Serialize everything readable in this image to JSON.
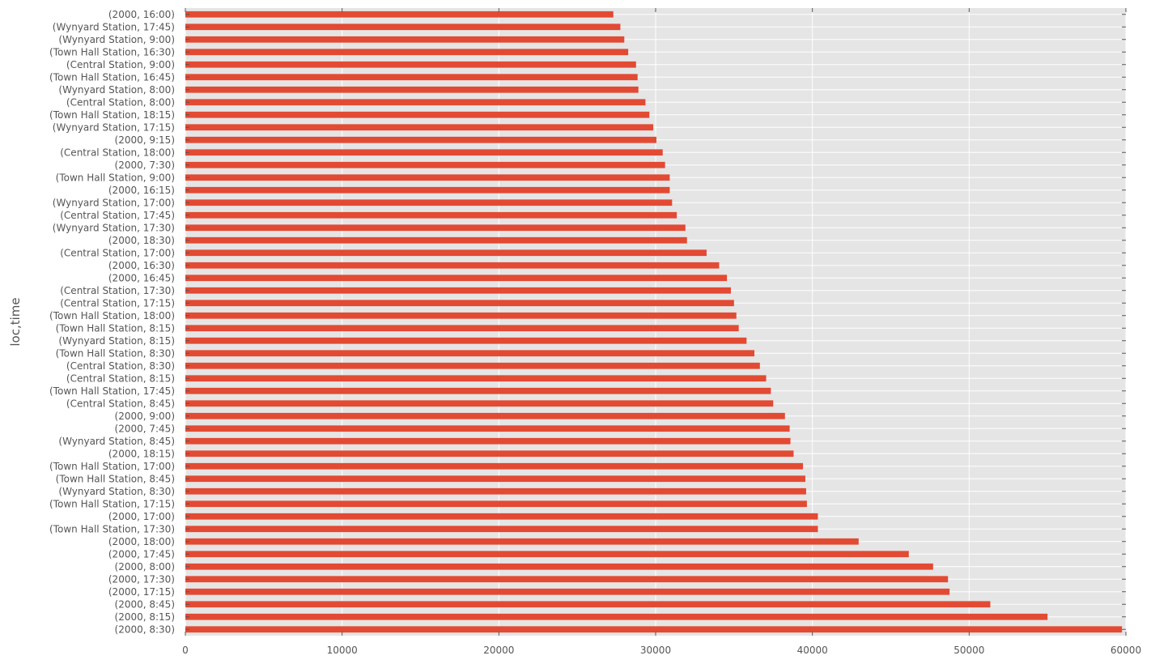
{
  "chart_data": {
    "type": "bar",
    "orientation": "horizontal",
    "title": "",
    "xlabel": "",
    "ylabel": "loc,time",
    "xlim": [
      0,
      60000
    ],
    "xticks": [
      0,
      10000,
      20000,
      30000,
      40000,
      50000,
      60000
    ],
    "grid": true,
    "legend": "none",
    "colors": {
      "bar": "#e24a33",
      "plot_bg": "#e5e5e5",
      "grid": "#ffffff",
      "text": "#555555"
    },
    "categories": [
      "(2000, 16:00)",
      "(Wynyard Station, 17:45)",
      "(Wynyard Station, 9:00)",
      "(Town Hall Station, 16:30)",
      "(Central Station, 9:00)",
      "(Town Hall Station, 16:45)",
      "(Wynyard Station, 8:00)",
      "(Central Station, 8:00)",
      "(Town Hall Station, 18:15)",
      "(Wynyard Station, 17:15)",
      "(2000, 9:15)",
      "(Central Station, 18:00)",
      "(2000, 7:30)",
      "(Town Hall Station, 9:00)",
      "(2000, 16:15)",
      "(Wynyard Station, 17:00)",
      "(Central Station, 17:45)",
      "(Wynyard Station, 17:30)",
      "(2000, 18:30)",
      "(Central Station, 17:00)",
      "(2000, 16:30)",
      "(2000, 16:45)",
      "(Central Station, 17:30)",
      "(Central Station, 17:15)",
      "(Town Hall Station, 18:00)",
      "(Town Hall Station, 8:15)",
      "(Wynyard Station, 8:15)",
      "(Town Hall Station, 8:30)",
      "(Central Station, 8:30)",
      "(Central Station, 8:15)",
      "(Town Hall Station, 17:45)",
      "(Central Station, 8:45)",
      "(2000, 9:00)",
      "(2000, 7:45)",
      "(Wynyard Station, 8:45)",
      "(2000, 18:15)",
      "(Town Hall Station, 17:00)",
      "(Town Hall Station, 8:45)",
      "(Wynyard Station, 8:30)",
      "(Town Hall Station, 17:15)",
      "(2000, 17:00)",
      "(Town Hall Station, 17:30)",
      "(2000, 18:00)",
      "(2000, 17:45)",
      "(2000, 8:00)",
      "(2000, 17:30)",
      "(2000, 17:15)",
      "(2000, 8:45)",
      "(2000, 8:15)",
      "(2000, 8:30)"
    ],
    "values": [
      27300,
      27750,
      28000,
      28250,
      28750,
      28850,
      28900,
      29350,
      29600,
      29850,
      30050,
      30450,
      30600,
      30900,
      30900,
      31050,
      31350,
      31900,
      32000,
      33250,
      34050,
      34550,
      34800,
      35000,
      35150,
      35300,
      35800,
      36300,
      36650,
      37050,
      37350,
      37500,
      38250,
      38550,
      38600,
      38800,
      39400,
      39550,
      39600,
      39650,
      40350,
      40350,
      42950,
      46150,
      47700,
      48650,
      48750,
      51350,
      55000,
      59750
    ]
  }
}
